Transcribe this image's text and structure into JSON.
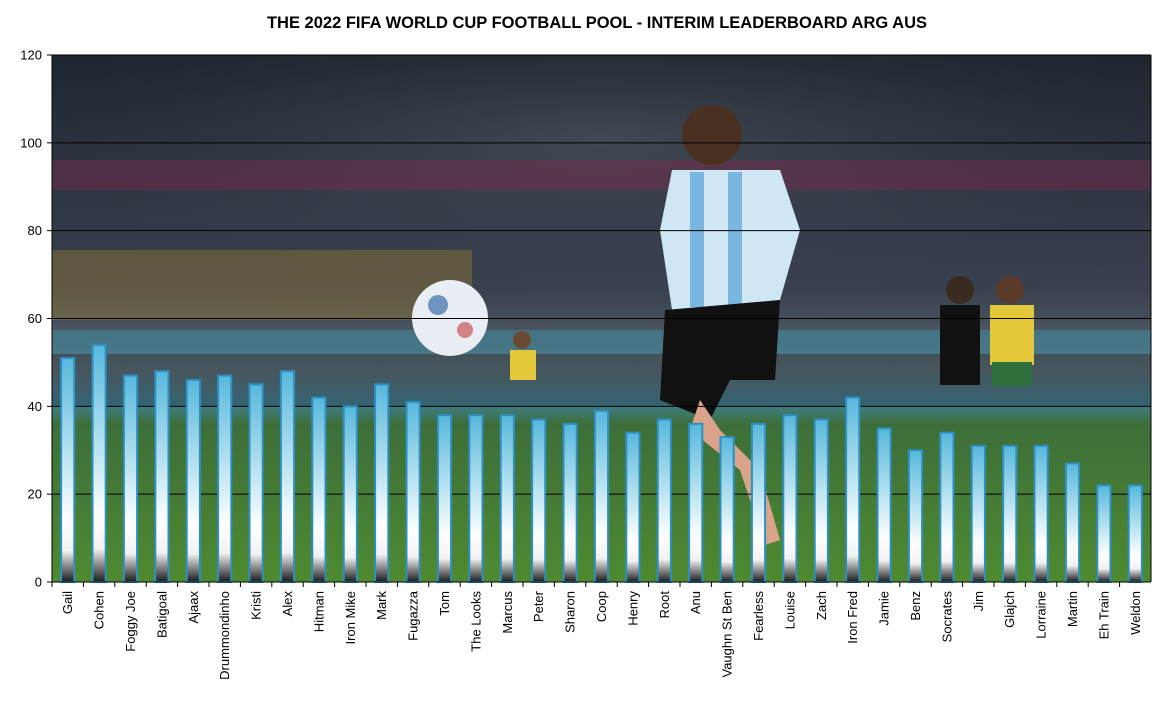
{
  "chart_data": {
    "type": "bar",
    "title": "THE 2022 FIFA WORLD CUP FOOTBALL POOL - INTERIM LEADERBOARD ARG AUS",
    "xlabel": "",
    "ylabel": "",
    "ylim": [
      0,
      120
    ],
    "yticks": [
      "0",
      "20",
      "40",
      "60",
      "80",
      "100",
      "120"
    ],
    "grid": true,
    "legend": "none",
    "categories": [
      "Gail",
      "Cohen",
      "Foggy Joe",
      "Batigoal",
      "Ajaax",
      "Drummondinho",
      "Kristi",
      "Alex",
      "Hitman",
      "Iron Mike",
      "Mark",
      "Fugazza",
      "Tom",
      "The Looks",
      "Marcus",
      "Peter",
      "Sharon",
      "Coop",
      "Henry",
      "Root",
      "Anu",
      "Vaughn St Ben",
      "Fearless",
      "Louise",
      "Zach",
      "Iron Fred",
      "Jamie",
      "Benz",
      "Socrates",
      "Jim",
      "Glajch",
      "Lorraine",
      "Martin",
      "Eh Train",
      "Weldon"
    ],
    "values": [
      51,
      54,
      47,
      48,
      46,
      47,
      45,
      48,
      42,
      40,
      45,
      41,
      38,
      38,
      38,
      37,
      36,
      39,
      34,
      37,
      36,
      33,
      36,
      38,
      37,
      42,
      35,
      30,
      34,
      31,
      31,
      31,
      27,
      22,
      22
    ],
    "colors": {
      "bar_top": "#4fb3d9",
      "bar_mid": "#ffffff",
      "bar_bottom": "#1a1a1a",
      "bar_border": "#2e8fc2",
      "background_photo": "stadium-soccer-photo"
    }
  }
}
